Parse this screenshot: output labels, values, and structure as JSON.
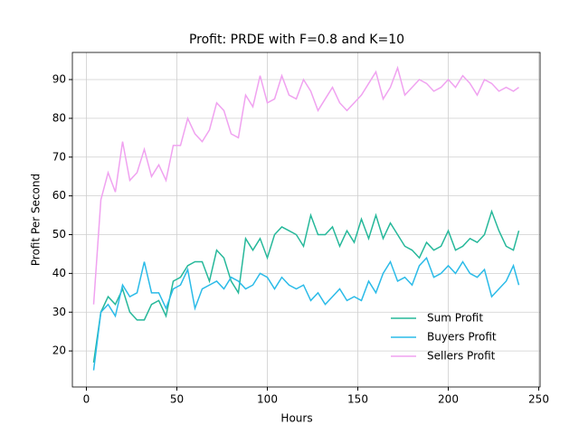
{
  "chart_data": {
    "type": "line",
    "title": "Profit: PRDE with F=0.8 and K=10",
    "xlabel": "Hours",
    "ylabel": "Profit Per Second",
    "x": [
      4,
      8,
      12,
      16,
      20,
      24,
      28,
      32,
      36,
      40,
      44,
      48,
      52,
      56,
      60,
      64,
      68,
      72,
      76,
      80,
      84,
      88,
      92,
      96,
      100,
      104,
      108,
      112,
      116,
      120,
      124,
      128,
      132,
      136,
      140,
      144,
      148,
      152,
      156,
      160,
      164,
      168,
      172,
      176,
      180,
      184,
      188,
      192,
      196,
      200,
      204,
      208,
      212,
      216,
      220,
      224,
      228,
      232,
      236,
      239
    ],
    "series": [
      {
        "name": "Sum Profit",
        "color": "#26b89a",
        "values": [
          17,
          30,
          34,
          32,
          36,
          30,
          28,
          28,
          32,
          33,
          29,
          38,
          39,
          42,
          43,
          43,
          38,
          46,
          44,
          38,
          35,
          49,
          46,
          49,
          44,
          50,
          52,
          51,
          50,
          47,
          55,
          50,
          50,
          52,
          47,
          51,
          48,
          54,
          49,
          55,
          49,
          53,
          50,
          47,
          46,
          44,
          48,
          46,
          47,
          51,
          46,
          47,
          49,
          48,
          50,
          56,
          51,
          47,
          46,
          51
        ]
      },
      {
        "name": "Buyers Profit",
        "color": "#2bbbe8",
        "values": [
          15,
          30,
          32,
          29,
          37,
          34,
          35,
          43,
          35,
          35,
          31,
          36,
          37,
          41,
          31,
          36,
          37,
          38,
          36,
          39,
          38,
          36,
          37,
          40,
          39,
          36,
          39,
          37,
          36,
          37,
          33,
          35,
          32,
          34,
          36,
          33,
          34,
          33,
          38,
          35,
          40,
          43,
          38,
          39,
          37,
          42,
          44,
          39,
          40,
          42,
          40,
          43,
          40,
          39,
          41,
          34,
          36,
          38,
          42,
          37
        ]
      },
      {
        "name": "Sellers Profit",
        "color": "#f0a2f0",
        "values": [
          32,
          59,
          66,
          61,
          74,
          64,
          66,
          72,
          65,
          68,
          64,
          73,
          73,
          80,
          76,
          74,
          77,
          84,
          82,
          76,
          75,
          86,
          83,
          91,
          84,
          85,
          91,
          86,
          85,
          90,
          87,
          82,
          85,
          88,
          84,
          82,
          84,
          86,
          89,
          92,
          85,
          88,
          93,
          86,
          88,
          90,
          89,
          87,
          88,
          90,
          88,
          91,
          89,
          86,
          90,
          89,
          87,
          88,
          87,
          88
        ]
      }
    ],
    "xlim": [
      -7.75,
      250.75
    ],
    "ylim": [
      10.7,
      97
    ],
    "xticks": [
      0,
      50,
      100,
      150,
      200,
      250
    ],
    "yticks": [
      20,
      30,
      40,
      50,
      60,
      70,
      80,
      90
    ],
    "grid": true,
    "legend": "lower right"
  }
}
